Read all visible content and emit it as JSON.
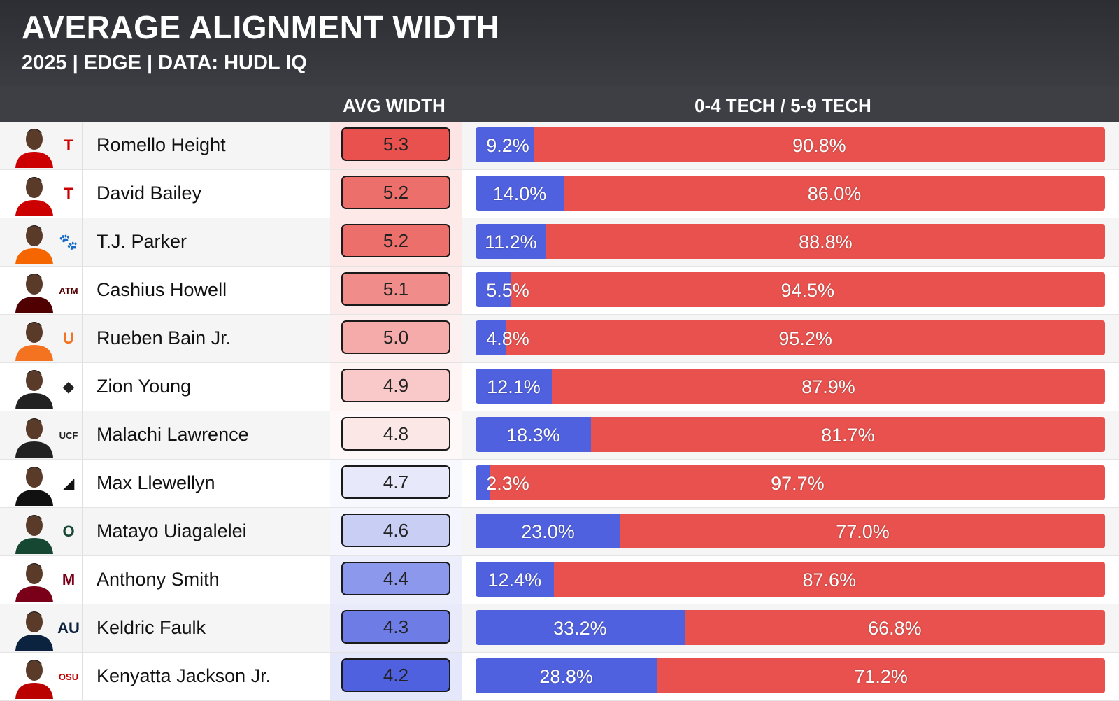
{
  "title": "AVERAGE ALIGNMENT WIDTH",
  "subtitle": "2025 | EDGE | DATA: HUDL IQ",
  "columns": {
    "avg_width": "AVG WIDTH",
    "tech_split": "0-4 TECH / 5-9 TECH"
  },
  "colors": {
    "blue": "#5061e0",
    "red": "#e8514d",
    "header_bg": "#2f3136"
  },
  "chart_data": {
    "type": "table",
    "title": "AVERAGE ALIGNMENT WIDTH",
    "subtitle": "2025 | EDGE | DATA: HUDL IQ",
    "series_names": [
      "0-4 TECH",
      "5-9 TECH"
    ],
    "rows": [
      {
        "player": "Romello Height",
        "logo": "texas-tech-logo",
        "logo_text": "T",
        "logo_color": "#cc0000",
        "avg_width": 5.3,
        "tech_0_4": 9.2,
        "tech_5_9": 90.8,
        "tech_0_4_label": "9.2%",
        "tech_5_9_label": "90.8%"
      },
      {
        "player": "David Bailey",
        "logo": "texas-tech-logo",
        "logo_text": "T",
        "logo_color": "#cc0000",
        "avg_width": 5.2,
        "tech_0_4": 14.0,
        "tech_5_9": 86.0,
        "tech_0_4_label": "14.0%",
        "tech_5_9_label": "86.0%"
      },
      {
        "player": "T.J. Parker",
        "logo": "clemson-paw-logo",
        "logo_text": "🐾",
        "logo_color": "#f56600",
        "avg_width": 5.2,
        "tech_0_4": 11.2,
        "tech_5_9": 88.8,
        "tech_0_4_label": "11.2%",
        "tech_5_9_label": "88.8%"
      },
      {
        "player": "Cashius Howell",
        "logo": "texas-am-logo",
        "logo_text": "ATM",
        "logo_color": "#500000",
        "avg_width": 5.1,
        "tech_0_4": 5.5,
        "tech_5_9": 94.5,
        "tech_0_4_label": "5.5%",
        "tech_5_9_label": "94.5%"
      },
      {
        "player": "Rueben Bain Jr.",
        "logo": "miami-u-logo",
        "logo_text": "U",
        "logo_color": "#f47321",
        "avg_width": 5.0,
        "tech_0_4": 4.8,
        "tech_5_9": 95.2,
        "tech_0_4_label": "4.8%",
        "tech_5_9_label": "95.2%"
      },
      {
        "player": "Zion Young",
        "logo": "missouri-tiger-logo",
        "logo_text": "◆",
        "logo_color": "#222222",
        "avg_width": 4.9,
        "tech_0_4": 12.1,
        "tech_5_9": 87.9,
        "tech_0_4_label": "12.1%",
        "tech_5_9_label": "87.9%"
      },
      {
        "player": "Malachi Lawrence",
        "logo": "ucf-logo",
        "logo_text": "UCF",
        "logo_color": "#222222",
        "avg_width": 4.8,
        "tech_0_4": 18.3,
        "tech_5_9": 81.7,
        "tech_0_4_label": "18.3%",
        "tech_5_9_label": "81.7%"
      },
      {
        "player": "Max Llewellyn",
        "logo": "iowa-hawkeye-logo",
        "logo_text": "◢",
        "logo_color": "#111111",
        "avg_width": 4.7,
        "tech_0_4": 2.3,
        "tech_5_9": 97.7,
        "tech_0_4_label": "2.3%",
        "tech_5_9_label": "97.7%"
      },
      {
        "player": "Matayo Uiagalelei",
        "logo": "oregon-o-logo",
        "logo_text": "O",
        "logo_color": "#154733",
        "avg_width": 4.6,
        "tech_0_4": 23.0,
        "tech_5_9": 77.0,
        "tech_0_4_label": "23.0%",
        "tech_5_9_label": "77.0%"
      },
      {
        "player": "Anthony Smith",
        "logo": "minnesota-m-logo",
        "logo_text": "M",
        "logo_color": "#7a0019",
        "avg_width": 4.4,
        "tech_0_4": 12.4,
        "tech_5_9": 87.6,
        "tech_0_4_label": "12.4%",
        "tech_5_9_label": "87.6%"
      },
      {
        "player": "Keldric Faulk",
        "logo": "auburn-au-logo",
        "logo_text": "AU",
        "logo_color": "#0c2340",
        "avg_width": 4.3,
        "tech_0_4": 33.2,
        "tech_5_9": 66.8,
        "tech_0_4_label": "33.2%",
        "tech_5_9_label": "66.8%"
      },
      {
        "player": "Kenyatta Jackson Jr.",
        "logo": "ohio-state-logo",
        "logo_text": "OSU",
        "logo_color": "#bb0000",
        "avg_width": 4.2,
        "tech_0_4": 28.8,
        "tech_5_9": 71.2,
        "tech_0_4_label": "28.8%",
        "tech_5_9_label": "71.2%"
      }
    ]
  }
}
